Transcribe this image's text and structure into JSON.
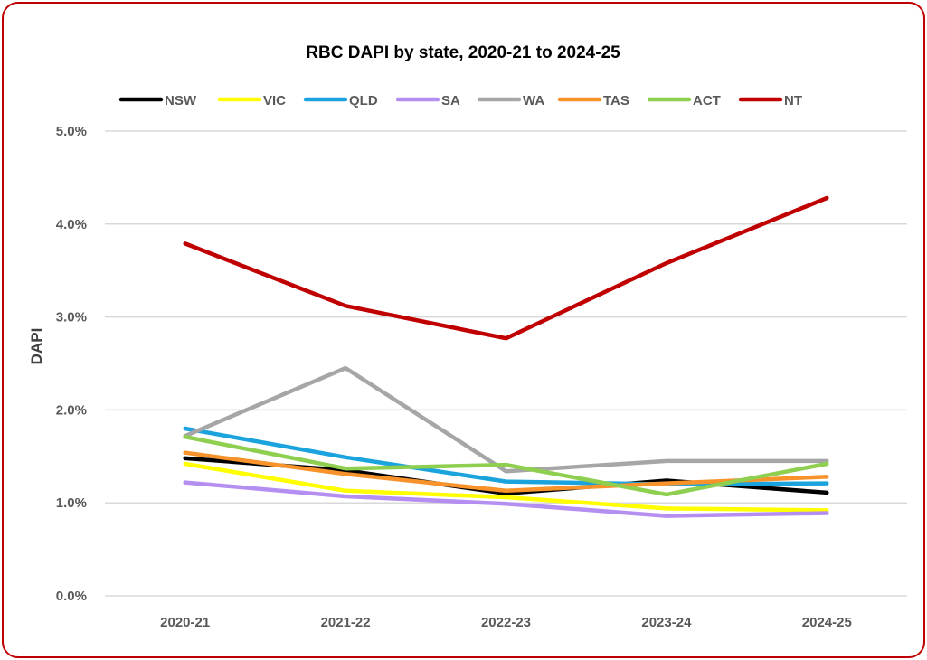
{
  "chart_data": {
    "type": "line",
    "title": "RBC DAPI by state, 2020-21 to 2024-25",
    "xlabel": "",
    "ylabel": "DAPI",
    "categories": [
      "2020-21",
      "2021-22",
      "2022-23",
      "2023-24",
      "2024-25"
    ],
    "ylim": [
      0,
      5
    ],
    "yticks": [
      0,
      1,
      2,
      3,
      4,
      5
    ],
    "ytick_labels": [
      "0.0%",
      "1.0%",
      "2.0%",
      "3.0%",
      "4.0%",
      "5.0%"
    ],
    "grid": true,
    "legend_position": "top",
    "series": [
      {
        "name": "NSW",
        "color": "#000000",
        "values": [
          1.48,
          1.35,
          1.1,
          1.24,
          1.11
        ]
      },
      {
        "name": "VIC",
        "color": "#ffff00",
        "values": [
          1.42,
          1.13,
          1.06,
          0.94,
          0.92
        ]
      },
      {
        "name": "QLD",
        "color": "#1aa3dc",
        "values": [
          1.8,
          1.49,
          1.23,
          1.2,
          1.21
        ]
      },
      {
        "name": "SA",
        "color": "#b48ef0",
        "values": [
          1.22,
          1.07,
          0.99,
          0.86,
          0.89
        ]
      },
      {
        "name": "WA",
        "color": "#a6a6a6",
        "values": [
          1.72,
          2.45,
          1.34,
          1.45,
          1.45
        ]
      },
      {
        "name": "TAS",
        "color": "#f7932a",
        "values": [
          1.54,
          1.31,
          1.13,
          1.21,
          1.28
        ]
      },
      {
        "name": "ACT",
        "color": "#8fcf4f",
        "values": [
          1.71,
          1.37,
          1.41,
          1.09,
          1.42
        ]
      },
      {
        "name": "NT",
        "color": "#c00000",
        "values": [
          3.79,
          3.12,
          2.77,
          3.58,
          4.28
        ]
      }
    ]
  }
}
